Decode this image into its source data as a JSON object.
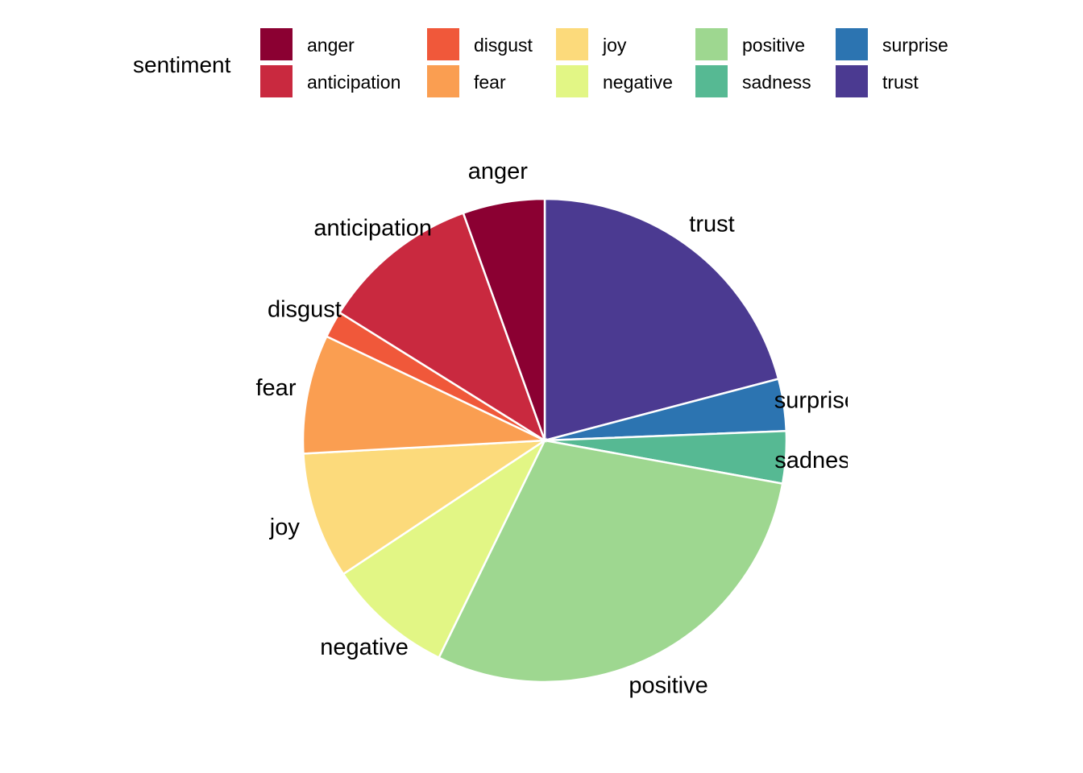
{
  "chart_data": {
    "type": "pie",
    "legend": {
      "title": "sentiment",
      "placement": "top"
    },
    "slices": [
      {
        "label": "trust",
        "value": 21.0,
        "color": "#4B3A91"
      },
      {
        "label": "surprise",
        "value": 3.5,
        "color": "#2C74B1"
      },
      {
        "label": "sadness",
        "value": 3.5,
        "color": "#56B993"
      },
      {
        "label": "positive",
        "value": 29.5,
        "color": "#9ED790"
      },
      {
        "label": "negative",
        "value": 8.5,
        "color": "#E2F685"
      },
      {
        "label": "joy",
        "value": 8.5,
        "color": "#FCDA7B"
      },
      {
        "label": "fear",
        "value": 8.0,
        "color": "#FA9E51"
      },
      {
        "label": "disgust",
        "value": 1.8,
        "color": "#F0583A"
      },
      {
        "label": "anticipation",
        "value": 10.7,
        "color": "#C9293F"
      },
      {
        "label": "anger",
        "value": 5.5,
        "color": "#8B0032"
      }
    ],
    "legend_entries": [
      {
        "label": "anger",
        "color": "#8B0032"
      },
      {
        "label": "anticipation",
        "color": "#C9293F"
      },
      {
        "label": "disgust",
        "color": "#F0583A"
      },
      {
        "label": "fear",
        "color": "#FA9E51"
      },
      {
        "label": "joy",
        "color": "#FCDA7B"
      },
      {
        "label": "negative",
        "color": "#E2F685"
      },
      {
        "label": "positive",
        "color": "#9ED790"
      },
      {
        "label": "sadness",
        "color": "#56B993"
      },
      {
        "label": "surprise",
        "color": "#2C74B1"
      },
      {
        "label": "trust",
        "color": "#4B3A91"
      }
    ]
  }
}
